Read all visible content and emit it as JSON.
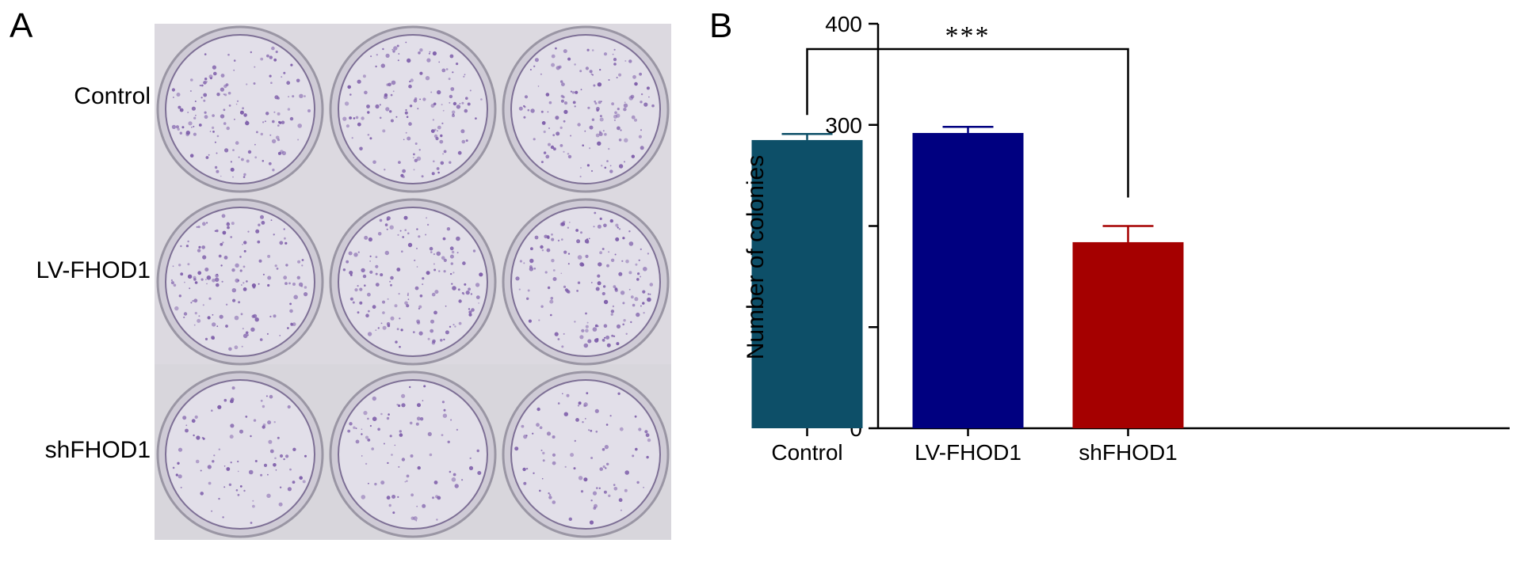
{
  "panel_a": {
    "label": "A",
    "rows": [
      "Control",
      "LV-FHOD1",
      "shFHOD1"
    ]
  },
  "panel_b": {
    "label": "B"
  },
  "chart_data": {
    "type": "bar",
    "categories": [
      "Control",
      "LV-FHOD1",
      "shFHOD1"
    ],
    "values": [
      285,
      292,
      184
    ],
    "errors": [
      6,
      6,
      16
    ],
    "colors": [
      "#0d4f68",
      "#000080",
      "#a50000"
    ],
    "xlabel": "",
    "ylabel": "Number of colonies",
    "ylim": [
      0,
      400
    ],
    "yticks": [
      0,
      100,
      200,
      300,
      400
    ],
    "significance": {
      "from": "Control",
      "to": "shFHOD1",
      "label": "***"
    }
  }
}
